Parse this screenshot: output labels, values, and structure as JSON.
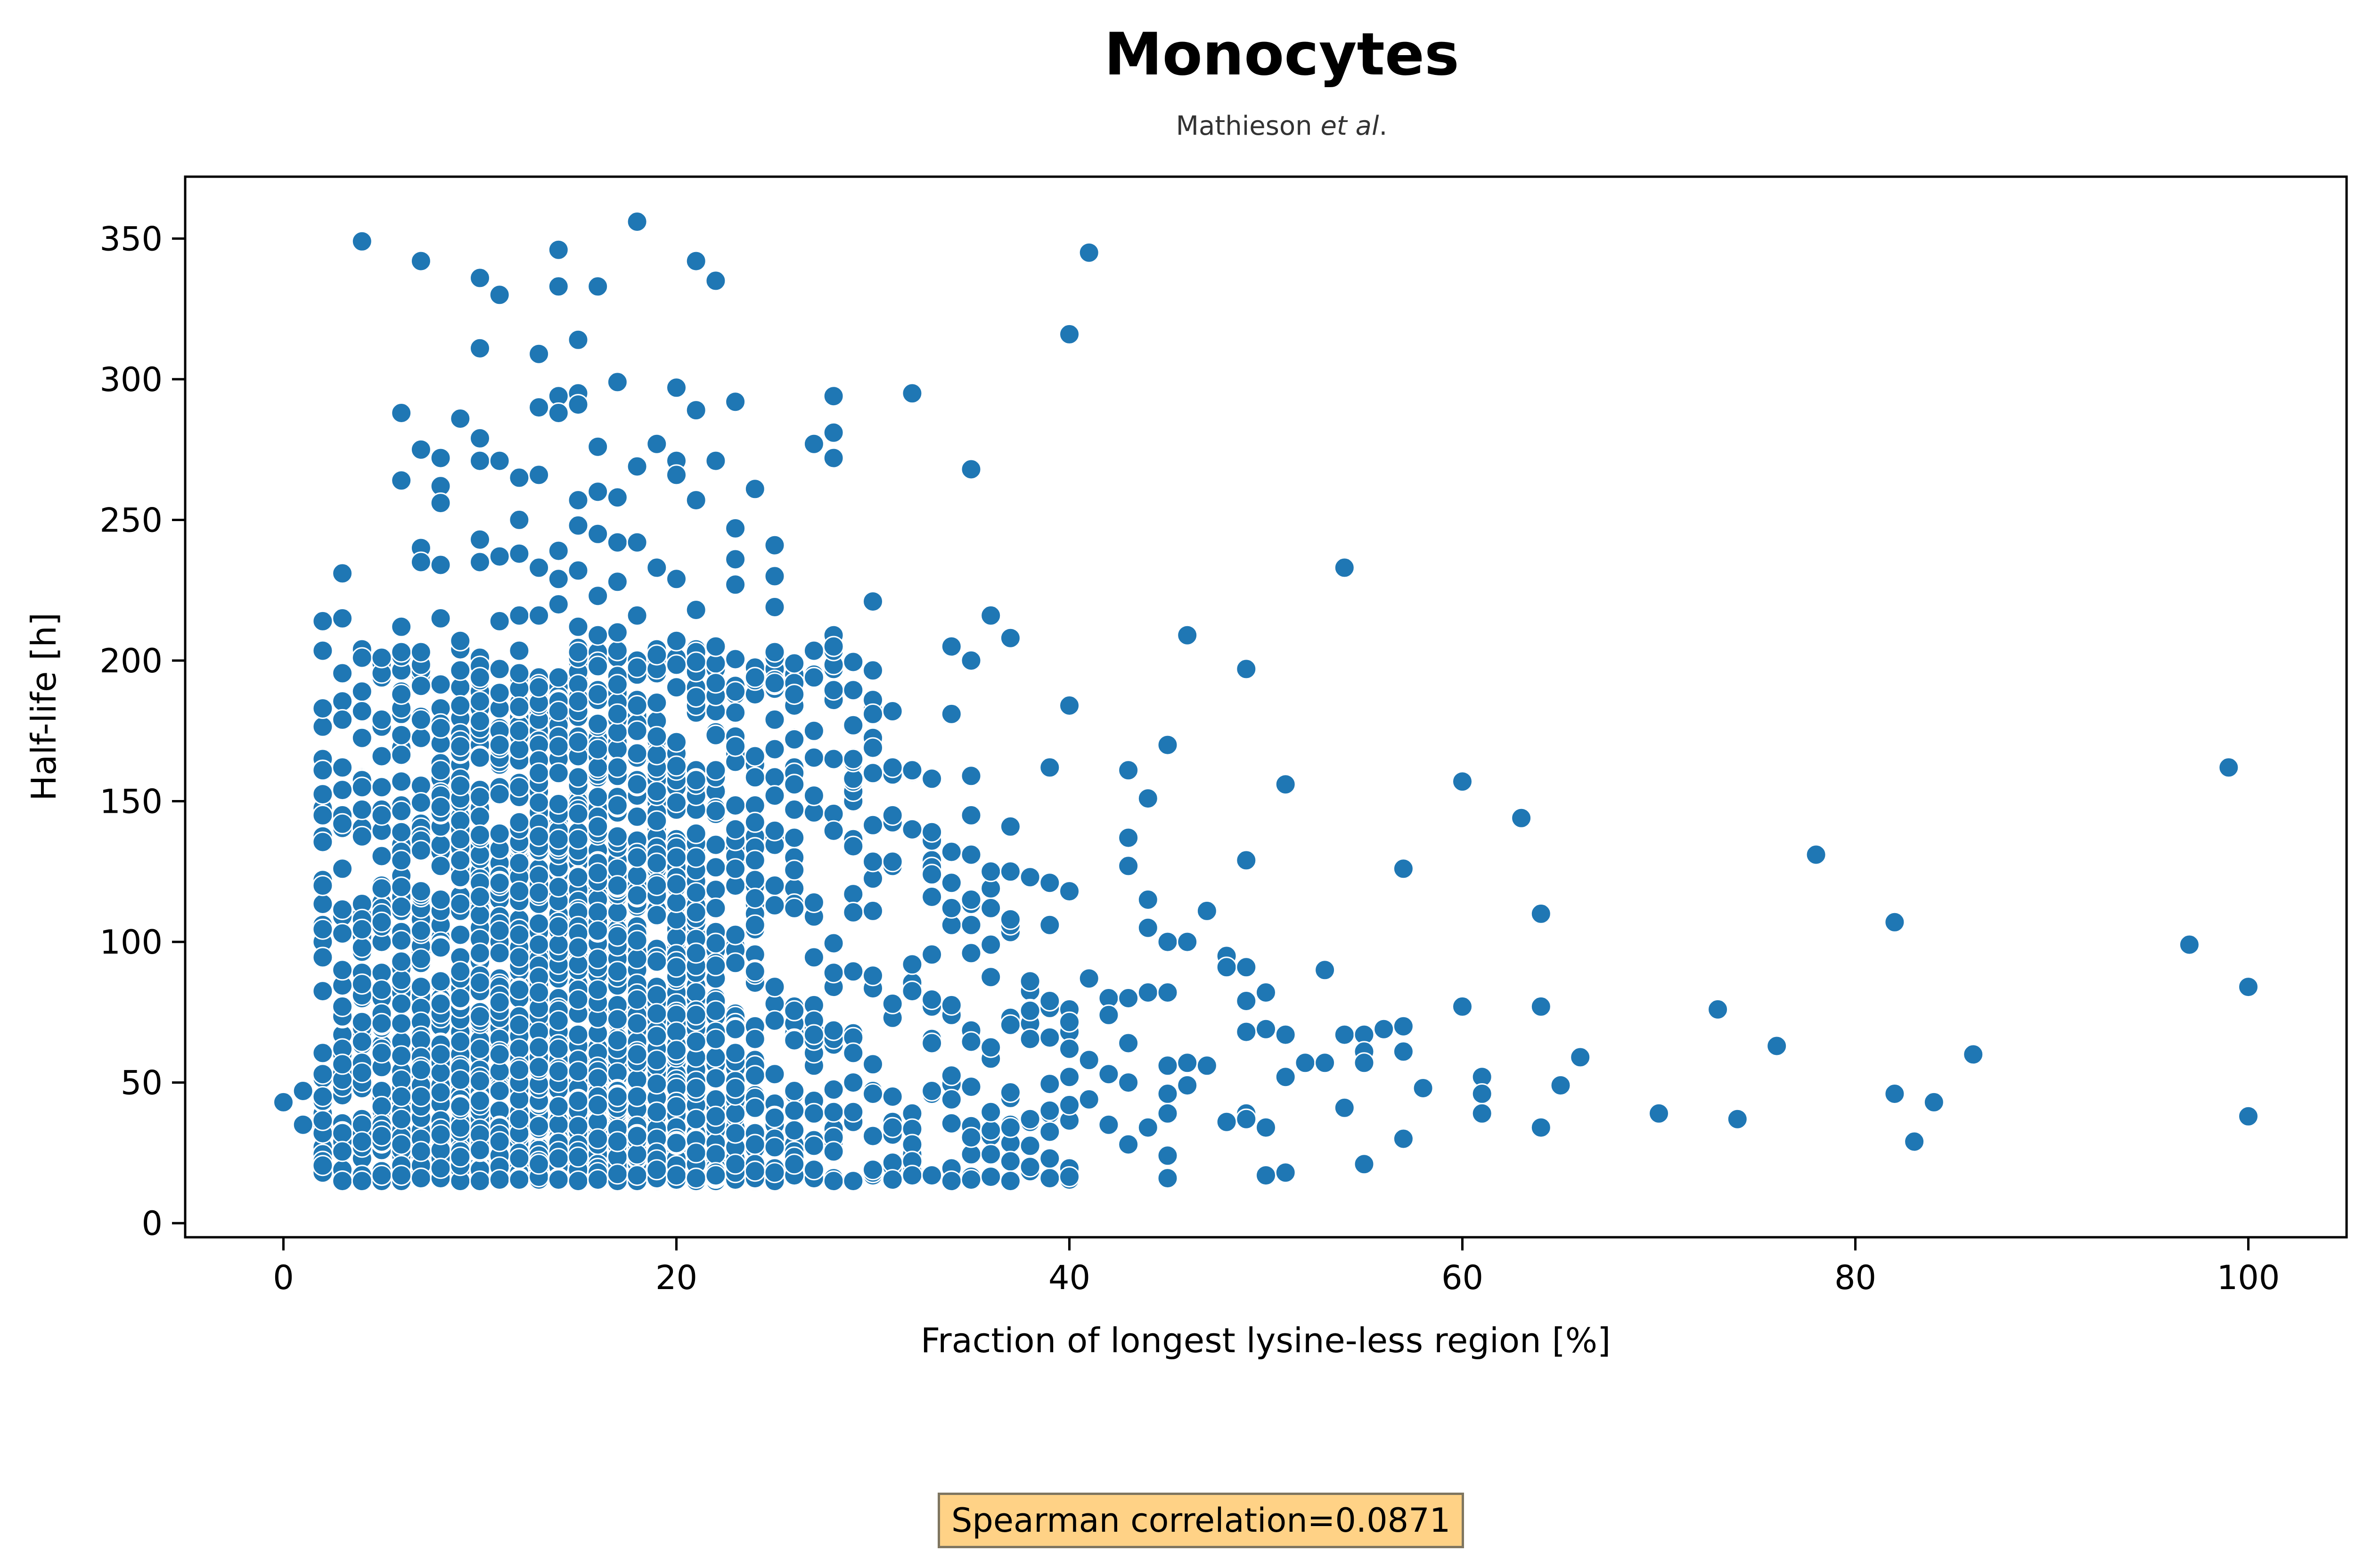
{
  "chart_data": {
    "type": "scatter",
    "title": "Monocytes",
    "subtitle_prefix": "Mathieson ",
    "subtitle_italic": "et al",
    "subtitle_suffix": ".",
    "xlabel": "Fraction of longest lysine-less region [%]",
    "ylabel": "Half-life [h]",
    "xlim": [
      -5,
      105
    ],
    "ylim": [
      -5,
      372
    ],
    "xticks": [
      0,
      20,
      40,
      60,
      80,
      100
    ],
    "yticks": [
      0,
      50,
      100,
      150,
      200,
      250,
      300,
      350
    ],
    "grid": false,
    "point_color": "#1f77b4",
    "dense_cloud": {
      "x_min": 2,
      "x_max": 40,
      "peak_x": 14,
      "y_floor": 15,
      "y_ceiling": 205,
      "approx_points": 2600
    },
    "points": [
      [
        0,
        43
      ],
      [
        1,
        47
      ],
      [
        1,
        35
      ],
      [
        2,
        214
      ],
      [
        2,
        183
      ],
      [
        3,
        215
      ],
      [
        3,
        231
      ],
      [
        3,
        179
      ],
      [
        3,
        142
      ],
      [
        4,
        349
      ],
      [
        4,
        201
      ],
      [
        4,
        155
      ],
      [
        5,
        155
      ],
      [
        5,
        201
      ],
      [
        6,
        288
      ],
      [
        6,
        264
      ],
      [
        6,
        212
      ],
      [
        6,
        203
      ],
      [
        7,
        342
      ],
      [
        7,
        275
      ],
      [
        7,
        240
      ],
      [
        7,
        235
      ],
      [
        7,
        203
      ],
      [
        7,
        191
      ],
      [
        8,
        272
      ],
      [
        8,
        262
      ],
      [
        8,
        256
      ],
      [
        8,
        234
      ],
      [
        8,
        215
      ],
      [
        9,
        286
      ],
      [
        9,
        207
      ],
      [
        10,
        336
      ],
      [
        10,
        311
      ],
      [
        10,
        279
      ],
      [
        10,
        271
      ],
      [
        10,
        243
      ],
      [
        10,
        235
      ],
      [
        11,
        330
      ],
      [
        11,
        271
      ],
      [
        11,
        237
      ],
      [
        11,
        214
      ],
      [
        12,
        265
      ],
      [
        12,
        250
      ],
      [
        12,
        238
      ],
      [
        12,
        216
      ],
      [
        13,
        309
      ],
      [
        13,
        290
      ],
      [
        13,
        266
      ],
      [
        13,
        233
      ],
      [
        13,
        216
      ],
      [
        14,
        346
      ],
      [
        14,
        333
      ],
      [
        14,
        294
      ],
      [
        14,
        288
      ],
      [
        14,
        239
      ],
      [
        14,
        229
      ],
      [
        14,
        220
      ],
      [
        15,
        314
      ],
      [
        15,
        295
      ],
      [
        15,
        291
      ],
      [
        15,
        257
      ],
      [
        15,
        248
      ],
      [
        15,
        232
      ],
      [
        15,
        212
      ],
      [
        16,
        333
      ],
      [
        16,
        276
      ],
      [
        16,
        260
      ],
      [
        16,
        245
      ],
      [
        16,
        223
      ],
      [
        16,
        209
      ],
      [
        17,
        299
      ],
      [
        17,
        258
      ],
      [
        17,
        242
      ],
      [
        17,
        228
      ],
      [
        17,
        210
      ],
      [
        18,
        356
      ],
      [
        18,
        269
      ],
      [
        18,
        242
      ],
      [
        18,
        216
      ],
      [
        19,
        277
      ],
      [
        19,
        233
      ],
      [
        19,
        202
      ],
      [
        20,
        297
      ],
      [
        20,
        271
      ],
      [
        20,
        266
      ],
      [
        20,
        229
      ],
      [
        20,
        207
      ],
      [
        21,
        342
      ],
      [
        21,
        289
      ],
      [
        21,
        257
      ],
      [
        21,
        218
      ],
      [
        22,
        335
      ],
      [
        22,
        271
      ],
      [
        22,
        192
      ],
      [
        23,
        292
      ],
      [
        23,
        247
      ],
      [
        23,
        236
      ],
      [
        23,
        227
      ],
      [
        23,
        189
      ],
      [
        24,
        261
      ],
      [
        24,
        194
      ],
      [
        25,
        241
      ],
      [
        25,
        230
      ],
      [
        25,
        219
      ],
      [
        25,
        203
      ],
      [
        25,
        192
      ],
      [
        26,
        188
      ],
      [
        26,
        172
      ],
      [
        27,
        277
      ],
      [
        28,
        294
      ],
      [
        28,
        281
      ],
      [
        28,
        272
      ],
      [
        28,
        209
      ],
      [
        28,
        205
      ],
      [
        29,
        177
      ],
      [
        29,
        165
      ],
      [
        30,
        221
      ],
      [
        30,
        186
      ],
      [
        30,
        181
      ],
      [
        30,
        169
      ],
      [
        30,
        160
      ],
      [
        31,
        162
      ],
      [
        31,
        145
      ],
      [
        32,
        295
      ],
      [
        32,
        161
      ],
      [
        32,
        140
      ],
      [
        33,
        158
      ],
      [
        33,
        124
      ],
      [
        33,
        116
      ],
      [
        34,
        205
      ],
      [
        34,
        181
      ],
      [
        34,
        121
      ],
      [
        35,
        268
      ],
      [
        35,
        200
      ],
      [
        35,
        159
      ],
      [
        35,
        145
      ],
      [
        35,
        131
      ],
      [
        36,
        216
      ],
      [
        36,
        125
      ],
      [
        36,
        112
      ],
      [
        37,
        208
      ],
      [
        37,
        141
      ],
      [
        37,
        125
      ],
      [
        37,
        108
      ],
      [
        38,
        123
      ],
      [
        39,
        162
      ],
      [
        39,
        121
      ],
      [
        39,
        106
      ],
      [
        40,
        316
      ],
      [
        40,
        184
      ],
      [
        40,
        118
      ],
      [
        40,
        62
      ],
      [
        40,
        42
      ],
      [
        41,
        345
      ],
      [
        41,
        87
      ],
      [
        41,
        58
      ],
      [
        41,
        44
      ],
      [
        42,
        80
      ],
      [
        42,
        74
      ],
      [
        42,
        53
      ],
      [
        42,
        35
      ],
      [
        43,
        161
      ],
      [
        43,
        137
      ],
      [
        43,
        127
      ],
      [
        43,
        80
      ],
      [
        43,
        64
      ],
      [
        43,
        50
      ],
      [
        43,
        28
      ],
      [
        44,
        151
      ],
      [
        44,
        115
      ],
      [
        44,
        105
      ],
      [
        44,
        82
      ],
      [
        44,
        34
      ],
      [
        45,
        170
      ],
      [
        45,
        100
      ],
      [
        45,
        82
      ],
      [
        45,
        56
      ],
      [
        45,
        46
      ],
      [
        45,
        39
      ],
      [
        45,
        24
      ],
      [
        45,
        16
      ],
      [
        46,
        209
      ],
      [
        46,
        100
      ],
      [
        46,
        57
      ],
      [
        46,
        49
      ],
      [
        47,
        111
      ],
      [
        47,
        56
      ],
      [
        48,
        95
      ],
      [
        48,
        91
      ],
      [
        48,
        36
      ],
      [
        49,
        197
      ],
      [
        49,
        129
      ],
      [
        49,
        91
      ],
      [
        49,
        79
      ],
      [
        49,
        68
      ],
      [
        49,
        39
      ],
      [
        49,
        37
      ],
      [
        50,
        82
      ],
      [
        50,
        69
      ],
      [
        50,
        34
      ],
      [
        50,
        17
      ],
      [
        51,
        156
      ],
      [
        51,
        67
      ],
      [
        51,
        52
      ],
      [
        51,
        18
      ],
      [
        52,
        57
      ],
      [
        53,
        90
      ],
      [
        53,
        57
      ],
      [
        54,
        233
      ],
      [
        54,
        67
      ],
      [
        54,
        41
      ],
      [
        55,
        67
      ],
      [
        55,
        61
      ],
      [
        55,
        57
      ],
      [
        55,
        21
      ],
      [
        56,
        69
      ],
      [
        57,
        126
      ],
      [
        57,
        70
      ],
      [
        57,
        61
      ],
      [
        57,
        30
      ],
      [
        58,
        48
      ],
      [
        60,
        157
      ],
      [
        60,
        77
      ],
      [
        61,
        52
      ],
      [
        61,
        46
      ],
      [
        61,
        39
      ],
      [
        63,
        144
      ],
      [
        64,
        110
      ],
      [
        64,
        77
      ],
      [
        64,
        34
      ],
      [
        65,
        49
      ],
      [
        66,
        59
      ],
      [
        70,
        39
      ],
      [
        73,
        76
      ],
      [
        74,
        37
      ],
      [
        76,
        63
      ],
      [
        78,
        131
      ],
      [
        82,
        107
      ],
      [
        82,
        46
      ],
      [
        83,
        29
      ],
      [
        84,
        43
      ],
      [
        86,
        60
      ],
      [
        97,
        99
      ],
      [
        99,
        162
      ],
      [
        100,
        84
      ],
      [
        100,
        38
      ]
    ],
    "annotation": "Spearman correlation=0.0871"
  }
}
